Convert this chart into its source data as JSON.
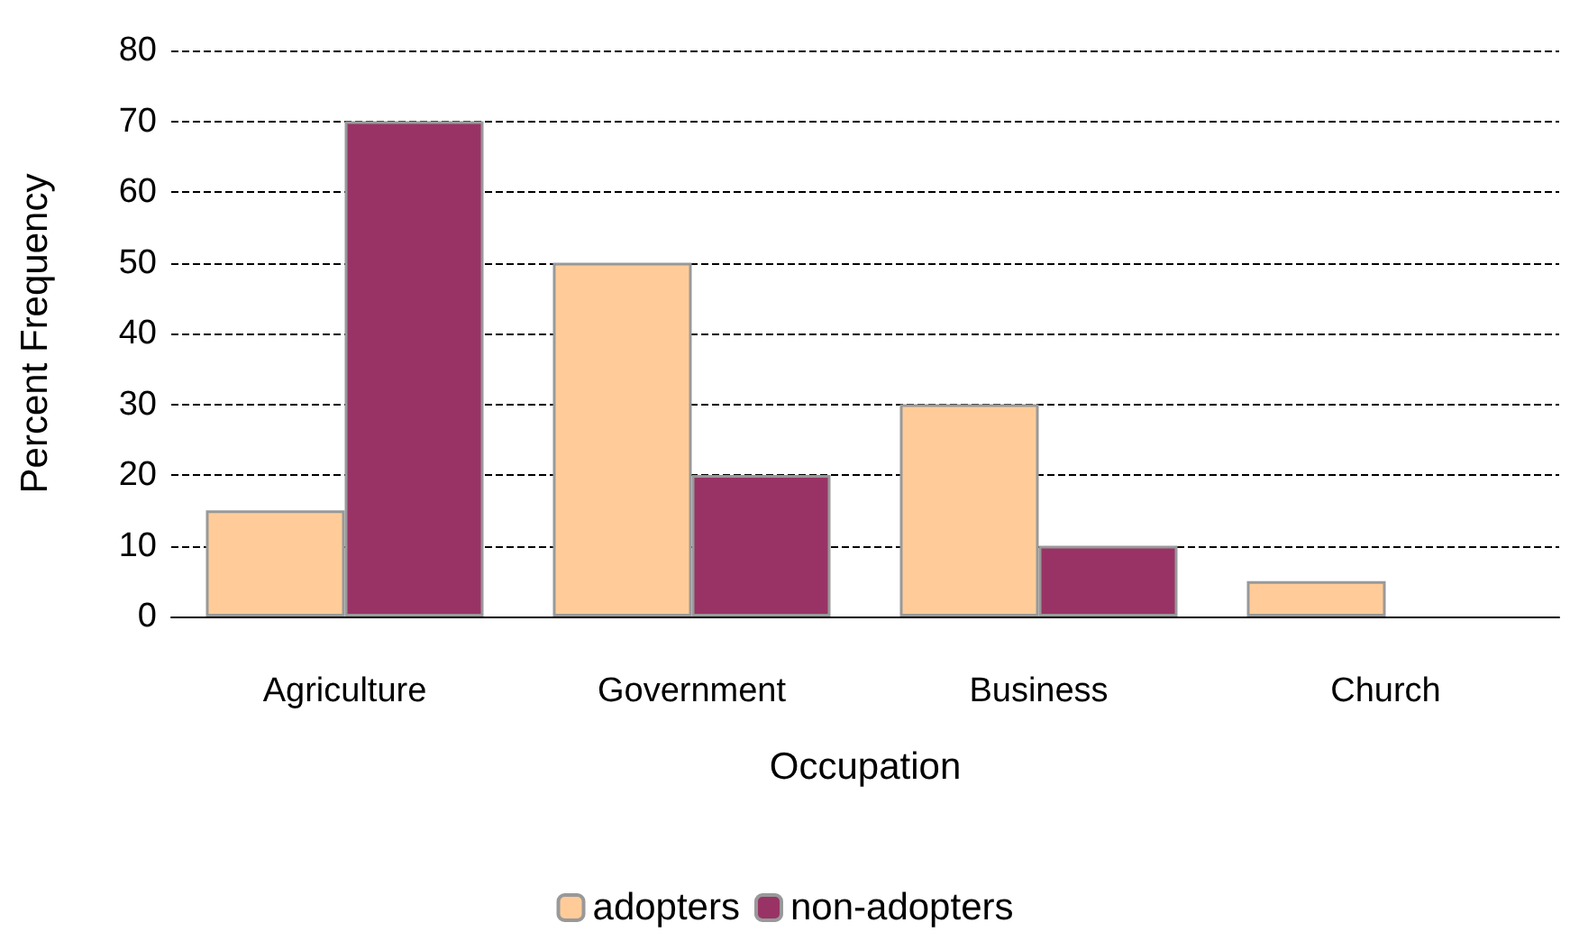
{
  "chart_data": {
    "type": "bar",
    "xlabel": "Occupation",
    "ylabel": "Percent Frequency",
    "categories": [
      "Agriculture",
      "Government",
      "Business",
      "Church"
    ],
    "series": [
      {
        "name": "adopters",
        "color": "#ffcc99",
        "values": [
          15,
          50,
          30,
          5
        ]
      },
      {
        "name": "non-adopters",
        "color": "#993366",
        "values": [
          70,
          20,
          10,
          0
        ]
      }
    ],
    "ylim": [
      0,
      80
    ],
    "yticks": [
      0,
      10,
      20,
      30,
      40,
      50,
      60,
      70,
      80
    ],
    "grid": "y",
    "legend": "bottom"
  }
}
